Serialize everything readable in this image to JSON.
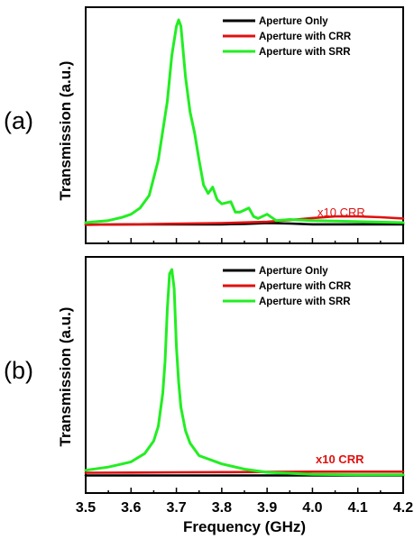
{
  "figure": {
    "xlabel": "Frequency (GHz)",
    "ylabel": "Transmission (a.u.)",
    "xticks": [
      "3.5",
      "3.6",
      "3.7",
      "3.8",
      "3.9",
      "4.0",
      "4.1",
      "4.2"
    ]
  },
  "colors": {
    "black": "#000000",
    "red": "#e01010",
    "green": "#22ee22"
  },
  "chart_data": [
    {
      "type": "line",
      "panel_label": "(a)",
      "xlabel": "",
      "ylabel": "Transmission (a.u.)",
      "xlim": [
        3.5,
        4.2
      ],
      "ylim": [
        0,
        1.1
      ],
      "legend_position": "top-right",
      "annotation": "x10 CRR",
      "annotation_color": "#e01010",
      "series": [
        {
          "name": "Aperture Only",
          "color": "#000000",
          "x": [
            3.5,
            3.6,
            3.7,
            3.8,
            3.85,
            3.9,
            3.95,
            4.0,
            4.1,
            4.2
          ],
          "y": [
            0.01,
            0.012,
            0.012,
            0.012,
            0.014,
            0.018,
            0.016,
            0.012,
            0.012,
            0.012
          ]
        },
        {
          "name": "Aperture with CRR",
          "color": "#e01010",
          "x": [
            3.5,
            3.6,
            3.7,
            3.8,
            3.9,
            3.95,
            4.0,
            4.05,
            4.1,
            4.15,
            4.2
          ],
          "y": [
            0.01,
            0.012,
            0.015,
            0.018,
            0.024,
            0.032,
            0.042,
            0.05,
            0.05,
            0.046,
            0.04
          ]
        },
        {
          "name": "Aperture with SRR",
          "color": "#22ee22",
          "x": [
            3.5,
            3.55,
            3.58,
            3.6,
            3.62,
            3.64,
            3.66,
            3.68,
            3.69,
            3.7,
            3.705,
            3.71,
            3.72,
            3.73,
            3.74,
            3.75,
            3.76,
            3.77,
            3.78,
            3.79,
            3.8,
            3.82,
            3.83,
            3.84,
            3.86,
            3.87,
            3.88,
            3.9,
            3.92,
            3.95,
            4.0,
            4.1,
            4.2
          ],
          "y": [
            0.02,
            0.03,
            0.045,
            0.06,
            0.09,
            0.15,
            0.32,
            0.6,
            0.82,
            0.96,
            0.99,
            0.96,
            0.72,
            0.55,
            0.45,
            0.32,
            0.2,
            0.16,
            0.19,
            0.13,
            0.11,
            0.12,
            0.07,
            0.07,
            0.09,
            0.05,
            0.04,
            0.06,
            0.03,
            0.035,
            0.03,
            0.025,
            0.02
          ]
        }
      ]
    },
    {
      "type": "line",
      "panel_label": "(b)",
      "xlabel": "Frequency (GHz)",
      "ylabel": "Transmission (a.u.)",
      "xlim": [
        3.5,
        4.2
      ],
      "ylim": [
        0,
        1.1
      ],
      "legend_position": "top-right",
      "annotation": "x10 CRR",
      "annotation_color": "#e01010",
      "series": [
        {
          "name": "Aperture Only",
          "color": "#000000",
          "x": [
            3.5,
            3.7,
            3.9,
            4.1,
            4.2
          ],
          "y": [
            0.005,
            0.005,
            0.005,
            0.005,
            0.005
          ]
        },
        {
          "name": "Aperture with CRR",
          "color": "#e01010",
          "x": [
            3.5,
            3.6,
            3.7,
            3.8,
            3.9,
            4.0,
            4.1,
            4.2
          ],
          "y": [
            0.018,
            0.019,
            0.02,
            0.021,
            0.022,
            0.023,
            0.023,
            0.023
          ]
        },
        {
          "name": "Aperture with SRR",
          "color": "#22ee22",
          "x": [
            3.5,
            3.55,
            3.6,
            3.63,
            3.65,
            3.66,
            3.67,
            3.675,
            3.68,
            3.685,
            3.69,
            3.695,
            3.7,
            3.705,
            3.71,
            3.72,
            3.73,
            3.75,
            3.8,
            3.85,
            3.9,
            4.0,
            4.1,
            4.2
          ],
          "y": [
            0.03,
            0.045,
            0.07,
            0.11,
            0.17,
            0.24,
            0.4,
            0.55,
            0.8,
            0.97,
            0.99,
            0.9,
            0.62,
            0.45,
            0.33,
            0.22,
            0.16,
            0.1,
            0.06,
            0.035,
            0.02,
            0.01,
            0.008,
            0.008
          ]
        }
      ]
    }
  ]
}
